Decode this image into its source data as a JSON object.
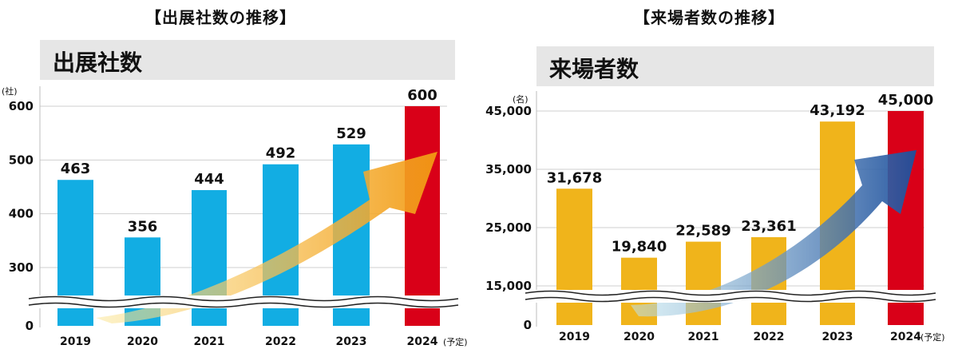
{
  "chart_data": [
    {
      "type": "bar",
      "figure_title": "【出展社数の推移】",
      "title": "出展社数",
      "unit": "(社)",
      "categories": [
        "2019",
        "2020",
        "2021",
        "2022",
        "2023",
        "2024"
      ],
      "category_note": "(予定)",
      "values": [
        463,
        356,
        444,
        492,
        529,
        600
      ],
      "value_labels": [
        "463",
        "356",
        "444",
        "492",
        "529",
        "600"
      ],
      "yticks": [
        0,
        300,
        400,
        500,
        600
      ],
      "ytick_labels": [
        "0",
        "300",
        "400",
        "500",
        "600"
      ],
      "axis_break": true,
      "ylim": [
        0,
        600
      ],
      "grid": true,
      "bar_color": "#12ade3",
      "highlight_color": "#d90018",
      "highlight_index": 5,
      "arrow_color": "#f3a81a",
      "legend": "none"
    },
    {
      "type": "bar",
      "figure_title": "【来場者数の推移】",
      "title": "来場者数",
      "unit": "(名)",
      "categories": [
        "2019",
        "2020",
        "2021",
        "2022",
        "2023",
        "2024"
      ],
      "category_note": "(予定)",
      "values": [
        31678,
        19840,
        22589,
        23361,
        43192,
        45000
      ],
      "value_labels": [
        "31,678",
        "19,840",
        "22,589",
        "23,361",
        "43,192",
        "45,000"
      ],
      "yticks": [
        0,
        15000,
        25000,
        35000,
        45000
      ],
      "ytick_labels": [
        "0",
        "15,000",
        "25,000",
        "35,000",
        "45,000"
      ],
      "axis_break": true,
      "ylim": [
        0,
        45000
      ],
      "grid": true,
      "bar_color": "#f0b41b",
      "highlight_color": "#d90018",
      "highlight_index": 5,
      "arrow_color": "#1565c0",
      "legend": "none"
    }
  ]
}
